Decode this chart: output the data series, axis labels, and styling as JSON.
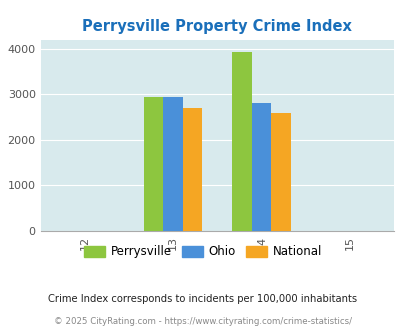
{
  "title": "Perrysville Property Crime Index",
  "title_color": "#1a6fba",
  "years": [
    2013,
    2014
  ],
  "perrysville": [
    2940,
    3920
  ],
  "ohio": [
    2940,
    2800
  ],
  "national": [
    2700,
    2600
  ],
  "bar_colors": {
    "perrysville": "#8dc63f",
    "ohio": "#4a90d9",
    "national": "#f5a623"
  },
  "xlim": [
    2011.5,
    2015.5
  ],
  "ylim": [
    0,
    4200
  ],
  "yticks": [
    0,
    1000,
    2000,
    3000,
    4000
  ],
  "xticks": [
    2012,
    2013,
    2014,
    2015
  ],
  "xtick_labels": [
    "12",
    "13",
    "14",
    "15"
  ],
  "background_color": "#d8eaed",
  "legend_labels": [
    "Perrysville",
    "Ohio",
    "National"
  ],
  "footnote1": "Crime Index corresponds to incidents per 100,000 inhabitants",
  "footnote2": "© 2025 CityRating.com - https://www.cityrating.com/crime-statistics/",
  "bar_width": 0.22,
  "figsize": [
    4.06,
    3.3
  ],
  "dpi": 100
}
